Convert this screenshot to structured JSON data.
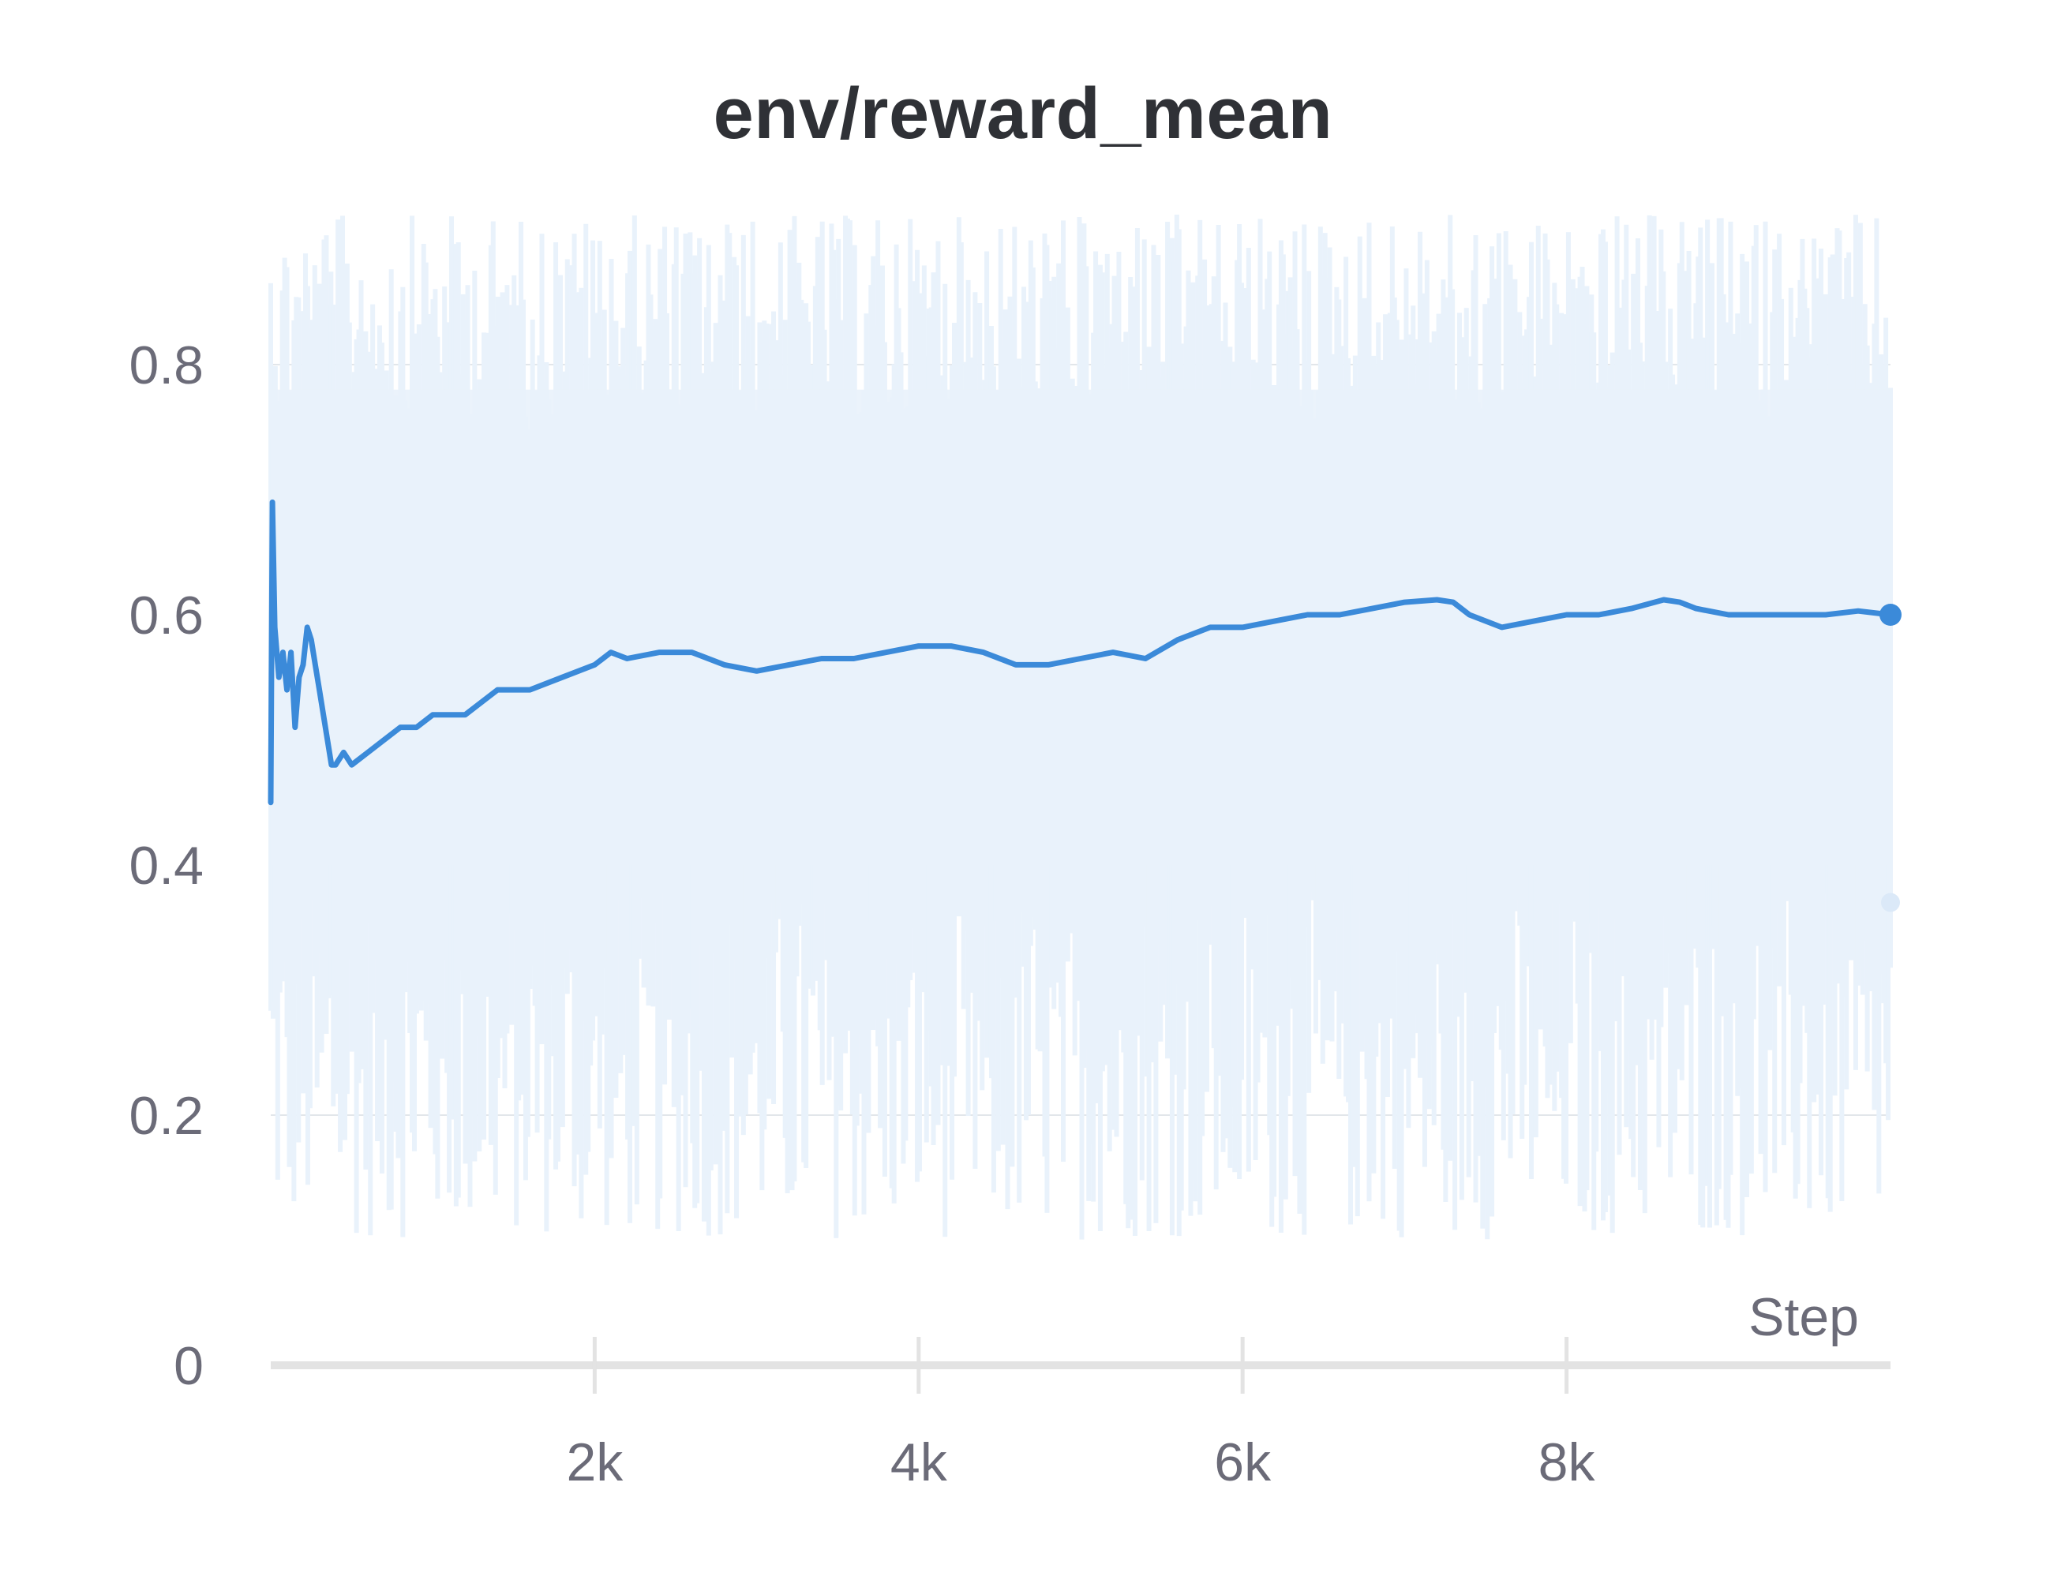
{
  "chart_data": {
    "type": "line",
    "title": "env/reward_mean",
    "xlabel": "Step",
    "ylabel": "",
    "xlim": [
      0,
      10000
    ],
    "ylim": [
      0,
      0.9
    ],
    "x_ticks": [
      2000,
      4000,
      6000,
      8000
    ],
    "x_tick_labels": [
      "2k",
      "4k",
      "6k",
      "8k"
    ],
    "y_ticks": [
      0,
      0.2,
      0.4,
      0.6,
      0.8
    ],
    "y_tick_labels": [
      "0",
      "0.2",
      "0.4",
      "0.6",
      "0.8"
    ],
    "grid": true,
    "legend": "none",
    "colors": {
      "smoothed": "#3b8ad9",
      "raw": "#e9f2fb",
      "grid": "#e2e6ea",
      "axis": "#e3e3e3"
    },
    "series": [
      {
        "role": "smoothed",
        "x": [
          0,
          10,
          25,
          50,
          75,
          100,
          125,
          150,
          175,
          200,
          225,
          250,
          275,
          300,
          325,
          350,
          375,
          400,
          450,
          500,
          600,
          700,
          800,
          900,
          1000,
          1200,
          1400,
          1600,
          1800,
          2000,
          2100,
          2200,
          2400,
          2600,
          2800,
          3000,
          3200,
          3400,
          3600,
          3800,
          4000,
          4200,
          4400,
          4600,
          4800,
          5000,
          5200,
          5400,
          5600,
          5800,
          6000,
          6200,
          6400,
          6600,
          6800,
          7000,
          7200,
          7300,
          7400,
          7600,
          7800,
          8000,
          8200,
          8400,
          8600,
          8700,
          8800,
          9000,
          9200,
          9400,
          9600,
          9800,
          10000
        ],
        "y": [
          0.45,
          0.69,
          0.59,
          0.55,
          0.57,
          0.54,
          0.57,
          0.51,
          0.55,
          0.56,
          0.59,
          0.58,
          0.56,
          0.54,
          0.52,
          0.5,
          0.48,
          0.48,
          0.49,
          0.48,
          0.49,
          0.5,
          0.51,
          0.51,
          0.52,
          0.52,
          0.54,
          0.54,
          0.55,
          0.56,
          0.57,
          0.565,
          0.57,
          0.57,
          0.56,
          0.555,
          0.56,
          0.565,
          0.565,
          0.57,
          0.575,
          0.575,
          0.57,
          0.56,
          0.56,
          0.565,
          0.57,
          0.565,
          0.58,
          0.59,
          0.59,
          0.595,
          0.6,
          0.6,
          0.605,
          0.61,
          0.612,
          0.61,
          0.6,
          0.59,
          0.595,
          0.6,
          0.6,
          0.605,
          0.612,
          0.61,
          0.605,
          0.6,
          0.6,
          0.6,
          0.6,
          0.603,
          0.6
        ]
      }
    ],
    "raw_band": {
      "role": "raw",
      "y_range": [
        0.1,
        0.92
      ],
      "last_raw_value": 0.37
    }
  }
}
